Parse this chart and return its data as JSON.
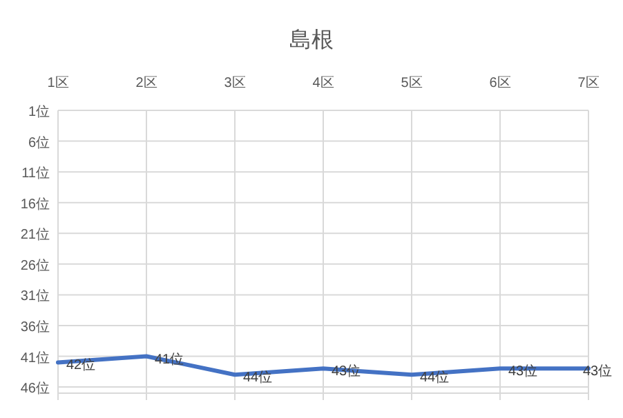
{
  "chart_data": {
    "type": "line",
    "title": "島根",
    "categories": [
      "1区",
      "2区",
      "3区",
      "4区",
      "5区",
      "6区",
      "7区"
    ],
    "series": [
      {
        "color": "#4472c4",
        "values": [
          42,
          41,
          44,
          43,
          44,
          43,
          43
        ],
        "value_labels": [
          "42位",
          "41位",
          "44位",
          "43位",
          "44位",
          "43位",
          "43位"
        ]
      }
    ],
    "ylim": [
      47,
      1
    ],
    "yticks": [
      {
        "value": 1,
        "label": "1位"
      },
      {
        "value": 6,
        "label": "6位"
      },
      {
        "value": 11,
        "label": "11位"
      },
      {
        "value": 16,
        "label": "16位"
      },
      {
        "value": 21,
        "label": "21位"
      },
      {
        "value": 26,
        "label": "26位"
      },
      {
        "value": 31,
        "label": "31位"
      },
      {
        "value": 36,
        "label": "36位"
      },
      {
        "value": 41,
        "label": "41位"
      },
      {
        "value": 46,
        "label": "46位"
      }
    ],
    "grid": true
  }
}
